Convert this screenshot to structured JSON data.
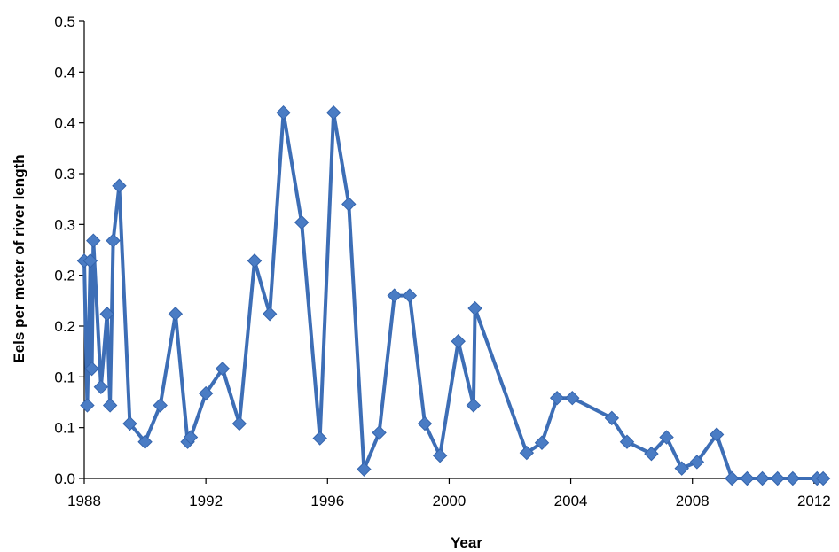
{
  "chart_data": {
    "type": "line",
    "title": "",
    "xlabel": "Year",
    "ylabel": "Eels per meter of river length",
    "xlim": [
      1988,
      2012.5
    ],
    "ylim": [
      0,
      0.5
    ],
    "x_ticks": [
      1988,
      1992,
      1996,
      2000,
      2004,
      2008,
      2012
    ],
    "y_ticks": [
      "0.0",
      "0.1",
      "0.1",
      "0.2",
      "0.2",
      "0.3",
      "0.3",
      "0.4",
      "0.4",
      "0.5"
    ],
    "grid": false,
    "legend": "none",
    "series": [
      {
        "color": "#3d6eb6",
        "marker": "diamond",
        "x": [
          1988.0,
          1988.1,
          1988.2,
          1988.25,
          1988.3,
          1988.55,
          1988.75,
          1988.85,
          1988.95,
          1989.15,
          1989.5,
          1990.0,
          1990.5,
          1991.0,
          1991.4,
          1991.5,
          1992.0,
          1992.55,
          1993.1,
          1993.6,
          1994.1,
          1994.55,
          1995.15,
          1995.75,
          1996.2,
          1996.7,
          1997.2,
          1997.7,
          1998.2,
          1998.7,
          1999.2,
          1999.7,
          2000.3,
          2000.8,
          2000.85,
          2002.55,
          2003.05,
          2003.55,
          2004.05,
          2005.35,
          2005.85,
          2006.65,
          2007.15,
          2007.65,
          2008.15,
          2008.8,
          2009.3,
          2009.8,
          2010.3,
          2010.8,
          2011.3,
          2012.1,
          2012.3
        ],
        "y": [
          0.238,
          0.08,
          0.238,
          0.12,
          0.26,
          0.1,
          0.18,
          0.08,
          0.26,
          0.32,
          0.06,
          0.04,
          0.08,
          0.18,
          0.04,
          0.045,
          0.093,
          0.12,
          0.06,
          0.238,
          0.18,
          0.4,
          0.28,
          0.044,
          0.4,
          0.3,
          0.01,
          0.05,
          0.2,
          0.2,
          0.06,
          0.025,
          0.15,
          0.08,
          0.186,
          0.028,
          0.039,
          0.088,
          0.088,
          0.066,
          0.04,
          0.027,
          0.045,
          0.011,
          0.018,
          0.048,
          0.0,
          0.0,
          0.0,
          0.0,
          0.0,
          0.0,
          0.0
        ]
      }
    ]
  }
}
